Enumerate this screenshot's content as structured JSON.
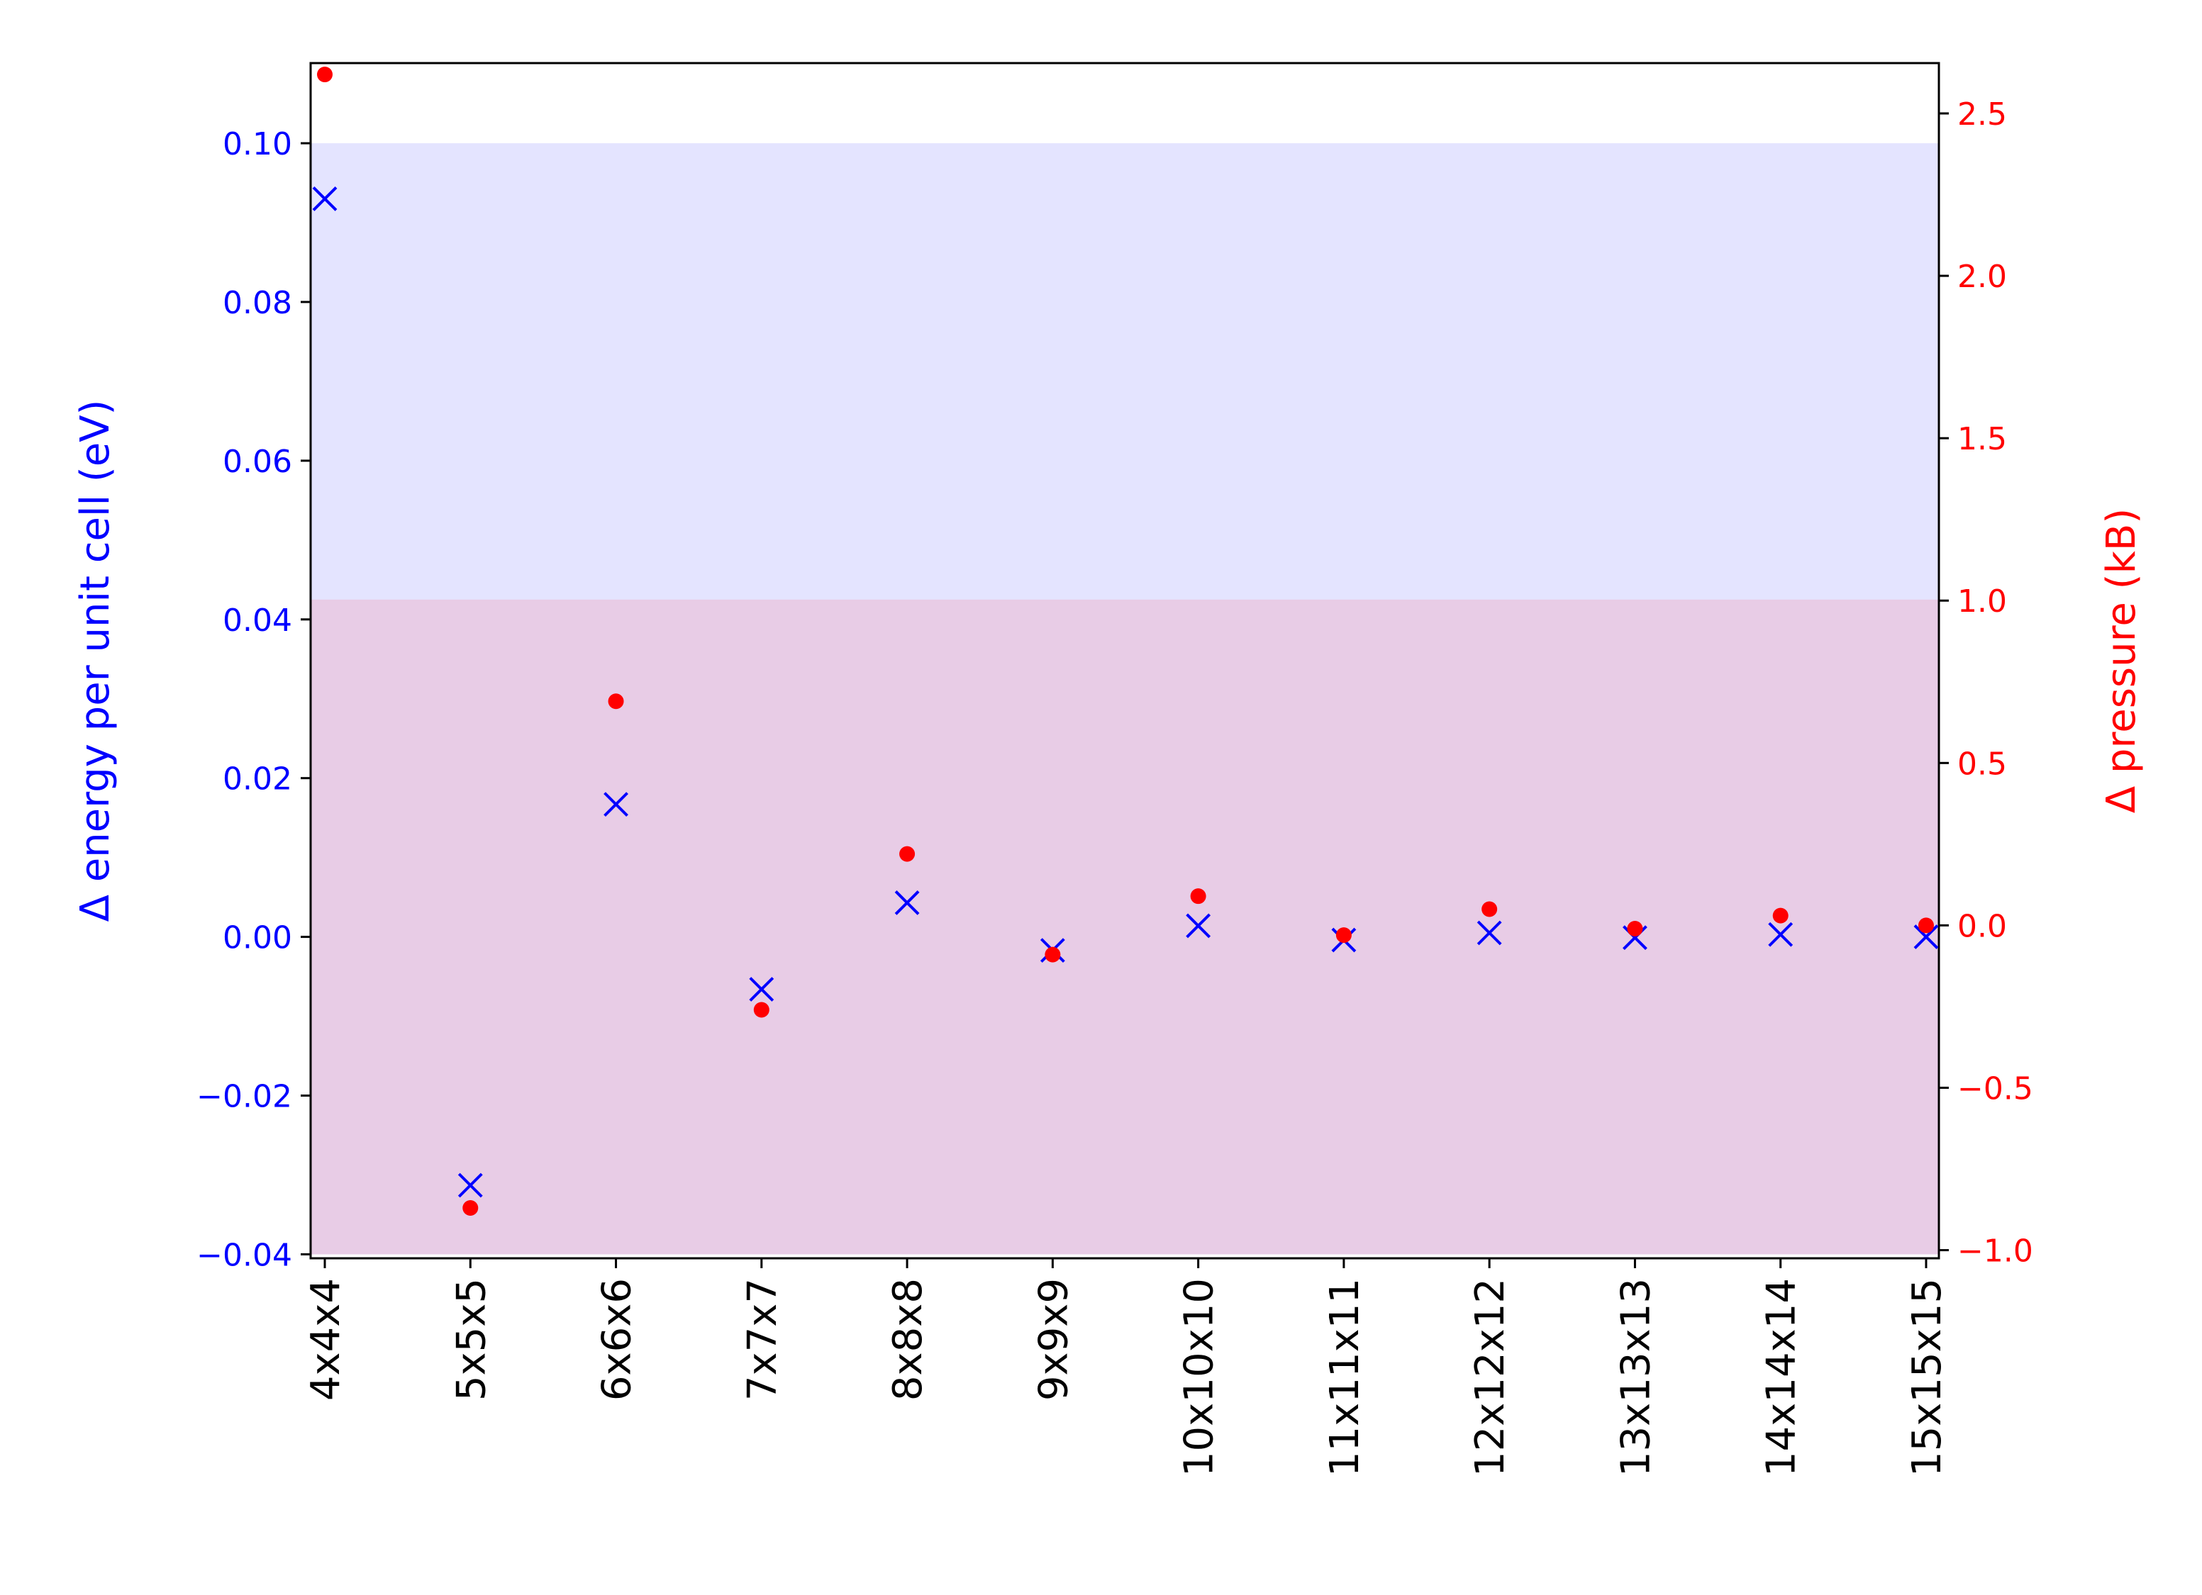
{
  "chart_data": {
    "type": "scatter",
    "categories": [
      "4x4x4",
      "5x5x5",
      "6x6x6",
      "7x7x7",
      "8x8x8",
      "9x9x9",
      "10x10x10",
      "11x11x11",
      "12x12x12",
      "13x13x13",
      "14x14x14",
      "15x15x15"
    ],
    "series": [
      {
        "axis": "left",
        "marker": "x",
        "color": "#0000ff",
        "values": [
          0.093,
          -0.0313,
          0.0167,
          -0.0066,
          0.0043,
          -0.0017,
          0.0014,
          -0.0004,
          0.0005,
          -0.0001,
          0.0003,
          0.0
        ]
      },
      {
        "axis": "right",
        "marker": "dot",
        "color": "#ff0000",
        "values": [
          2.62,
          -0.87,
          0.69,
          -0.26,
          0.22,
          -0.09,
          0.09,
          -0.03,
          0.05,
          -0.01,
          0.03,
          0.0
        ]
      }
    ],
    "ylabel_left": "Δ energy per unit cell (eV)",
    "ylabel_right": "Δ pressure (kB)",
    "ylim_left": [
      -0.0405,
      0.1101
    ],
    "yticks_left": [
      -0.04,
      -0.02,
      0.0,
      0.02,
      0.04,
      0.06,
      0.08,
      0.1
    ],
    "ytick_labels_left": [
      "−0.04",
      "−0.02",
      "0.00",
      "0.02",
      "0.04",
      "0.06",
      "0.08",
      "0.10"
    ],
    "ylim_right": [
      -1.025,
      2.655
    ],
    "yticks_right": [
      -1.0,
      -0.5,
      0.0,
      0.5,
      1.0,
      1.5,
      2.0,
      2.5
    ],
    "ytick_labels_right": [
      "−1.0",
      "−0.5",
      "0.0",
      "0.5",
      "1.0",
      "1.5",
      "2.0",
      "2.5"
    ],
    "bands": [
      {
        "axis": "left",
        "from": -0.04,
        "to": 0.1,
        "color": "#e4e4ff"
      },
      {
        "axis": "left",
        "from": -0.04,
        "to": 0.0425,
        "color": "#e8cce6"
      }
    ],
    "left_axis_color": "#0000ff",
    "right_axis_color": "#ff0000",
    "grid": false
  }
}
